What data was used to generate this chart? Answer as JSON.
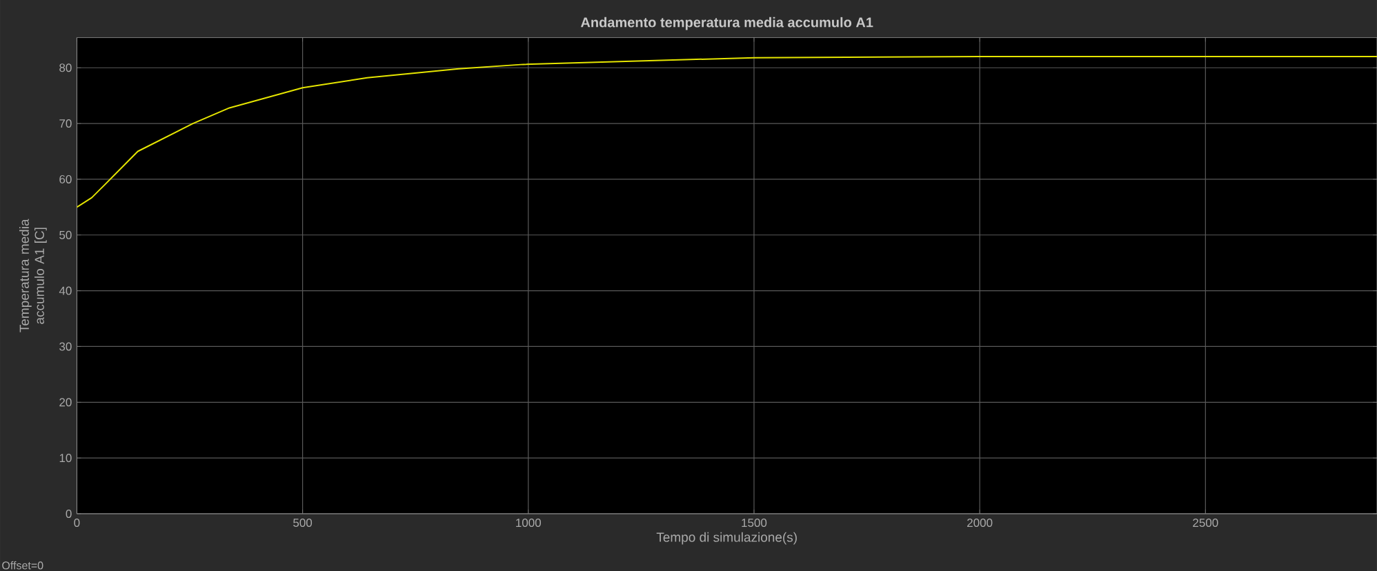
{
  "chart_data": {
    "type": "line",
    "title": "Andamento temperatura media accumulo A1",
    "xlabel": "Tempo di simulazione(s)",
    "ylabel": "Temperatura media accumulo A1 [C]",
    "annotations": [
      "Offset=0"
    ],
    "x": [
      0,
      33,
      64,
      135,
      257,
      338,
      500,
      643,
      846,
      989,
      1500,
      2000,
      2500,
      2880
    ],
    "series": [
      {
        "color": "#e6e600",
        "values": [
          55,
          56.7,
          59.2,
          65,
          70,
          72.8,
          76.4,
          78.2,
          79.8,
          80.6,
          81.8,
          82,
          82,
          82
        ]
      }
    ],
    "xlim": [
      0,
      2880
    ],
    "ylim": [
      0,
      85.4
    ],
    "xticks": [
      0,
      500,
      1000,
      1500,
      2000,
      2500
    ],
    "yticks": [
      0,
      10,
      20,
      30,
      40,
      50,
      60,
      70,
      80
    ],
    "grid": true,
    "marker": "none",
    "line_style": "solid"
  }
}
